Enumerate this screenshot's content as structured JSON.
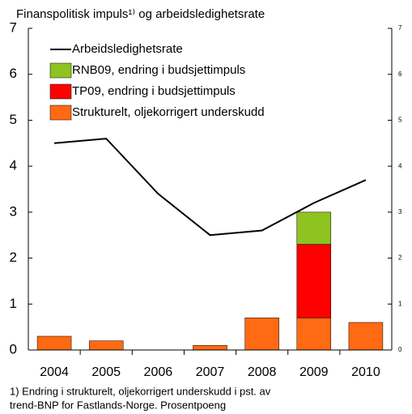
{
  "chart_data": {
    "type": "bar",
    "title": "Finanspolitisk impuls¹⁾ og arbeidsledighetsrate",
    "categories": [
      "2004",
      "2005",
      "2006",
      "2007",
      "2008",
      "2009",
      "2010"
    ],
    "series": [
      {
        "name": "Strukturelt, oljekorrigert underskudd",
        "color": "#ff6a13",
        "type": "bar",
        "values": [
          0.3,
          0.2,
          0,
          0.1,
          0.7,
          0.7,
          0.6
        ]
      },
      {
        "name": "TP09, endring i budsjettimpuls",
        "color": "#ff0000",
        "type": "bar",
        "values": [
          null,
          null,
          null,
          null,
          null,
          1.6,
          null
        ]
      },
      {
        "name": "RNB09, endring i budsjettimpuls",
        "color": "#8fc31f",
        "type": "bar",
        "values": [
          null,
          null,
          null,
          null,
          null,
          0.7,
          null
        ]
      },
      {
        "name": "Arbeidsledighetsrate",
        "color": "#000000",
        "type": "line",
        "axis": "y2",
        "values": [
          4.5,
          4.6,
          3.4,
          2.5,
          2.6,
          3.2,
          3.7
        ]
      }
    ],
    "ylim": [
      0,
      7
    ],
    "yticks": [
      0,
      1,
      2,
      3,
      4,
      5,
      6,
      7
    ],
    "y2lim": [
      0,
      7
    ],
    "y2ticks": [
      0,
      1,
      2,
      3,
      4,
      5,
      6,
      7
    ],
    "legend": "upper left",
    "footnote": [
      "1) Endring i strukturelt, oljekorrigert underskudd i pst. av",
      "trend-BNP for Fastlands-Norge. Prosentpoeng"
    ]
  }
}
